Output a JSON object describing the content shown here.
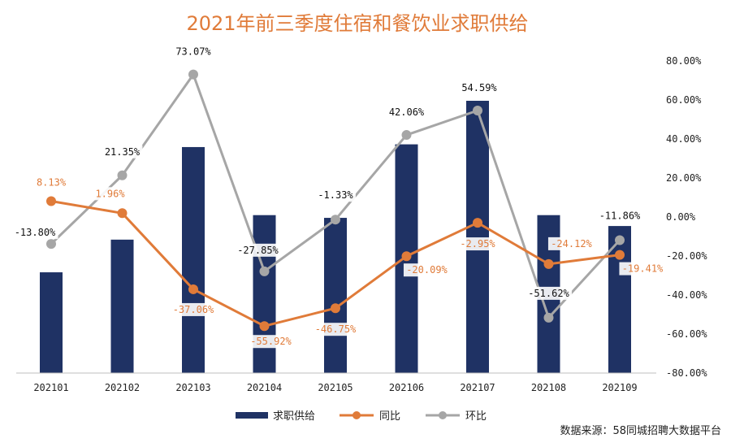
{
  "chart_data": {
    "type": "bar+line",
    "title": "2021年前三季度住宿和餐饮业求职供给",
    "categories": [
      "202101",
      "202102",
      "202103",
      "202104",
      "202105",
      "202106",
      "202107",
      "202108",
      "202109"
    ],
    "bar_series": {
      "name": "求职供给",
      "values": [
        0.37,
        0.49,
        0.83,
        0.58,
        0.57,
        0.84,
        1.0,
        0.58,
        0.54
      ]
    },
    "series": [
      {
        "name": "同比",
        "values": [
          8.13,
          1.96,
          -37.06,
          -55.92,
          -46.75,
          -20.09,
          -2.95,
          -24.12,
          -19.41
        ],
        "labels": [
          "8.13%",
          "1.96%",
          "-37.06%",
          "-55.92%",
          "-46.75%",
          "-20.09%",
          "-2.95%",
          "-24.12%",
          "-19.41%"
        ]
      },
      {
        "name": "环比",
        "values": [
          -13.8,
          21.35,
          73.07,
          -27.85,
          -1.33,
          42.06,
          54.59,
          -51.62,
          -11.86
        ],
        "labels": [
          "-13.80%",
          "21.35%",
          "73.07%",
          "-27.85%",
          "-1.33%",
          "42.06%",
          "54.59%",
          "-51.62%",
          "-11.86%"
        ]
      }
    ],
    "y2": {
      "ylim": [
        -80,
        80
      ],
      "ticks": [
        "80.00%",
        "60.00%",
        "40.00%",
        "20.00%",
        "0.00%",
        "-20.00%",
        "-40.00%",
        "-60.00%",
        "-80.00%"
      ]
    },
    "colors": {
      "bar": "#1f3264",
      "yoy": "#e07b39",
      "mom": "#a6a6a6",
      "title": "#e07b39"
    },
    "legend": [
      "求职供给",
      "同比",
      "环比"
    ],
    "source": "数据来源：58同城招聘大数据平台"
  }
}
